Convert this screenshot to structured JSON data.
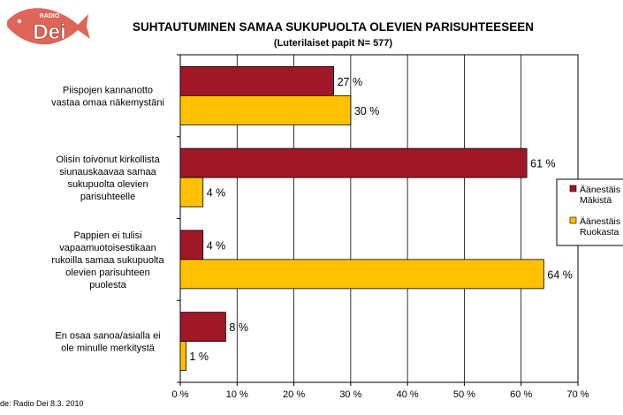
{
  "brand": {
    "logo_text": "Dei",
    "logo_small_text": "RADIO",
    "logo_color": "#e8231f",
    "fish_color": "#d94a3c"
  },
  "source_note": "de: Radio Dei 8.3. 2010",
  "colors": {
    "series1": "#a01828",
    "series2": "#ffc000",
    "plot_bg": "#ffffff",
    "grid": "#000000"
  },
  "chart_data": {
    "type": "bar",
    "orientation": "horizontal",
    "title": "SUHTAUTUMINEN SAMAA SUKUPUOLTA OLEVIEN PARISUHTEESEEN",
    "subtitle": "(Luterilaiset papit N= 577)",
    "categories": [
      [
        "Piispojen kannanotto",
        "vastaa omaa näkemystäni"
      ],
      [
        "Olisin toivonut kirkollista",
        "siunauskaavaa samaa",
        "sukupuolta olevien",
        "parisuhteelle"
      ],
      [
        "Pappien ei tulisi",
        "vapaamuotoisestikaan",
        "rukoilla samaa sukupuolta",
        "olevien parisuhteen",
        "puolesta"
      ],
      [
        "En osaa sanoa/asialla ei",
        "ole minulle merkitystä"
      ]
    ],
    "series": [
      {
        "name": "Äänestäis Mäkistä",
        "legend_lines": [
          "Äänestäis",
          "Mäkistä"
        ],
        "values": [
          27,
          61,
          4,
          8
        ],
        "labels": [
          "27 %",
          "61 %",
          "4 %",
          "8 %"
        ]
      },
      {
        "name": "Äänestäis Ruokasta",
        "legend_lines": [
          "Äänestäis",
          "Ruokasta"
        ],
        "values": [
          30,
          4,
          64,
          1
        ],
        "labels": [
          "30 %",
          "4 %",
          "64 %",
          "1 %"
        ]
      }
    ],
    "xlim": [
      0,
      70
    ],
    "xticks": [
      0,
      10,
      20,
      30,
      40,
      50,
      60,
      70
    ],
    "xtick_labels": [
      "0 %",
      "10 %",
      "20 %",
      "30 %",
      "40 %",
      "50 %",
      "60 %",
      "70 %"
    ],
    "grid": true,
    "legend_position": "right"
  }
}
